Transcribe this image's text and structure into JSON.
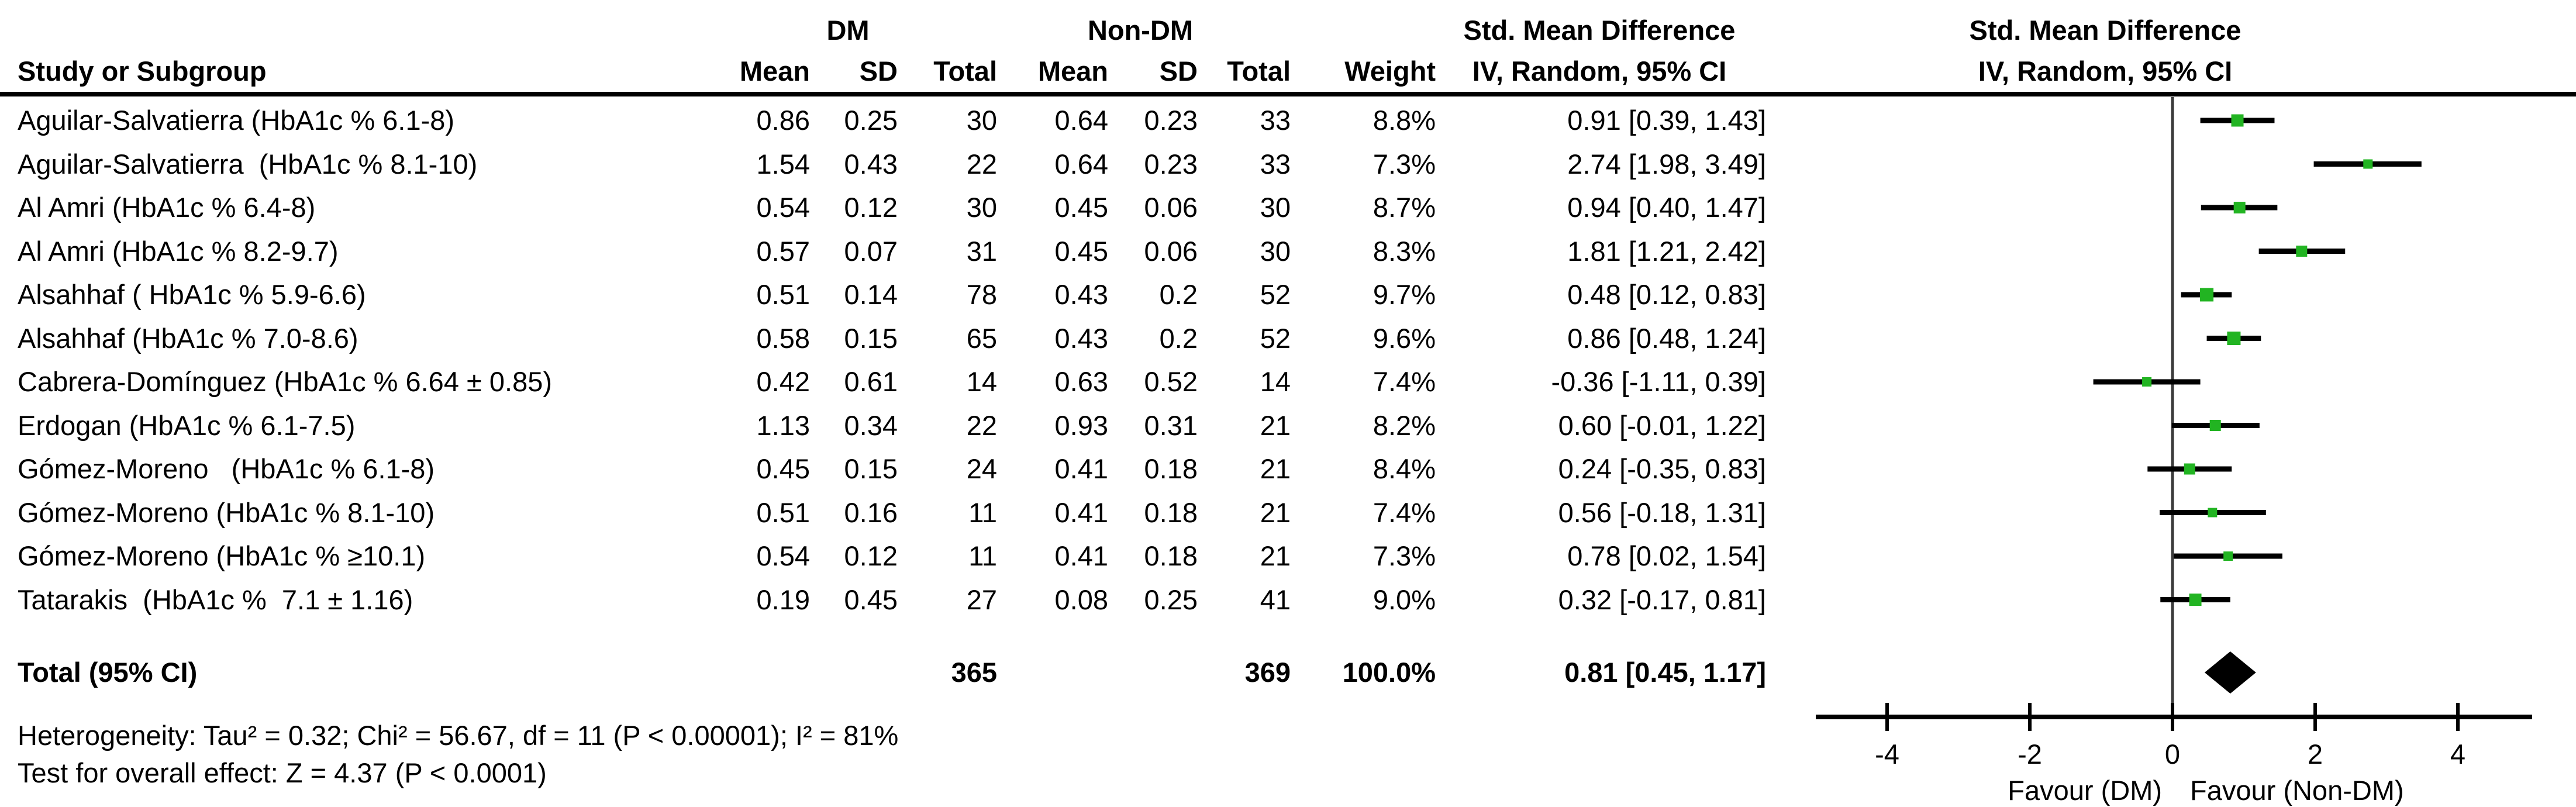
{
  "header": {
    "group1": "DM",
    "group2": "Non-DM",
    "effect_title": "Std. Mean Difference",
    "plot_title": "Std. Mean Difference",
    "columns": {
      "study": "Study or Subgroup",
      "mean1": "Mean",
      "sd1": "SD",
      "total1": "Total",
      "mean2": "Mean",
      "sd2": "SD",
      "total2": "Total",
      "weight": "Weight",
      "effect_ci": "IV, Random, 95% CI",
      "plot_ci": "IV, Random, 95% CI"
    }
  },
  "studies": [
    {
      "name": "Aguilar-Salvatierra (HbA1c % 6.1-8)",
      "mean1": "0.86",
      "sd1": "0.25",
      "total1": "30",
      "mean2": "0.64",
      "sd2": "0.23",
      "total2": "33",
      "weight": "8.8%",
      "ci_text": "0.91 [0.39, 1.43]"
    },
    {
      "name": "Aguilar-Salvatierra  (HbA1c % 8.1-10)",
      "mean1": "1.54",
      "sd1": "0.43",
      "total1": "22",
      "mean2": "0.64",
      "sd2": "0.23",
      "total2": "33",
      "weight": "7.3%",
      "ci_text": "2.74 [1.98, 3.49]"
    },
    {
      "name": "Al Amri (HbA1c % 6.4-8)",
      "mean1": "0.54",
      "sd1": "0.12",
      "total1": "30",
      "mean2": "0.45",
      "sd2": "0.06",
      "total2": "30",
      "weight": "8.7%",
      "ci_text": "0.94 [0.40, 1.47]"
    },
    {
      "name": "Al Amri (HbA1c % 8.2-9.7)",
      "mean1": "0.57",
      "sd1": "0.07",
      "total1": "31",
      "mean2": "0.45",
      "sd2": "0.06",
      "total2": "30",
      "weight": "8.3%",
      "ci_text": "1.81 [1.21, 2.42]"
    },
    {
      "name": "Alsahhaf ( HbA1c % 5.9-6.6)",
      "mean1": "0.51",
      "sd1": "0.14",
      "total1": "78",
      "mean2": "0.43",
      "sd2": "0.2",
      "total2": "52",
      "weight": "9.7%",
      "ci_text": "0.48 [0.12, 0.83]"
    },
    {
      "name": "Alsahhaf (HbA1c % 7.0-8.6)",
      "mean1": "0.58",
      "sd1": "0.15",
      "total1": "65",
      "mean2": "0.43",
      "sd2": "0.2",
      "total2": "52",
      "weight": "9.6%",
      "ci_text": "0.86 [0.48, 1.24]"
    },
    {
      "name": "Cabrera-Domínguez (HbA1c % 6.64 ± 0.85)",
      "mean1": "0.42",
      "sd1": "0.61",
      "total1": "14",
      "mean2": "0.63",
      "sd2": "0.52",
      "total2": "14",
      "weight": "7.4%",
      "ci_text": "-0.36 [-1.11, 0.39]"
    },
    {
      "name": "Erdogan (HbA1c % 6.1-7.5)",
      "mean1": "1.13",
      "sd1": "0.34",
      "total1": "22",
      "mean2": "0.93",
      "sd2": "0.31",
      "total2": "21",
      "weight": "8.2%",
      "ci_text": "0.60 [-0.01, 1.22]"
    },
    {
      "name": "Gómez-Moreno   (HbA1c % 6.1-8)",
      "mean1": "0.45",
      "sd1": "0.15",
      "total1": "24",
      "mean2": "0.41",
      "sd2": "0.18",
      "total2": "21",
      "weight": "8.4%",
      "ci_text": "0.24 [-0.35, 0.83]"
    },
    {
      "name": "Gómez-Moreno (HbA1c % 8.1-10)",
      "mean1": "0.51",
      "sd1": "0.16",
      "total1": "11",
      "mean2": "0.41",
      "sd2": "0.18",
      "total2": "21",
      "weight": "7.4%",
      "ci_text": "0.56 [-0.18, 1.31]"
    },
    {
      "name": "Gómez-Moreno (HbA1c % ≥10.1)",
      "mean1": "0.54",
      "sd1": "0.12",
      "total1": "11",
      "mean2": "0.41",
      "sd2": "0.18",
      "total2": "21",
      "weight": "7.3%",
      "ci_text": "0.78 [0.02, 1.54]"
    },
    {
      "name": "Tatarakis  (HbA1c %  7.1 ± 1.16)",
      "mean1": "0.19",
      "sd1": "0.45",
      "total1": "27",
      "mean2": "0.08",
      "sd2": "0.25",
      "total2": "41",
      "weight": "9.0%",
      "ci_text": "0.32 [-0.17, 0.81]"
    }
  ],
  "total_row": {
    "label": "Total (95% CI)",
    "total1": "365",
    "total2": "369",
    "weight": "100.0%",
    "ci_text": "0.81 [0.45, 1.17]"
  },
  "footer": {
    "heterogeneity": "Heterogeneity: Tau² = 0.32; Chi² = 56.67, df = 11 (P < 0.00001); I² = 81%",
    "overall_effect": "Test for overall effect: Z = 4.37 (P < 0.0001)"
  },
  "colors": {
    "marker_green": "#22B422",
    "line_black": "#000000",
    "zero_line_gray": "#3C3C3C",
    "text": "#000000",
    "background": "#FFFFFF"
  },
  "chart_data": {
    "type": "scatter",
    "subtype": "forest-plot",
    "effect_measure": "Std. Mean Difference, IV, Random, 95% CI",
    "points": [
      {
        "study": "Aguilar-Salvatierra (HbA1c % 6.1-8)",
        "est": 0.91,
        "lo": 0.39,
        "hi": 1.43,
        "weight_pct": 8.8
      },
      {
        "study": "Aguilar-Salvatierra (HbA1c % 8.1-10)",
        "est": 2.74,
        "lo": 1.98,
        "hi": 3.49,
        "weight_pct": 7.3
      },
      {
        "study": "Al Amri (HbA1c % 6.4-8)",
        "est": 0.94,
        "lo": 0.4,
        "hi": 1.47,
        "weight_pct": 8.7
      },
      {
        "study": "Al Amri (HbA1c % 8.2-9.7)",
        "est": 1.81,
        "lo": 1.21,
        "hi": 2.42,
        "weight_pct": 8.3
      },
      {
        "study": "Alsahhaf (HbA1c % 5.9-6.6)",
        "est": 0.48,
        "lo": 0.12,
        "hi": 0.83,
        "weight_pct": 9.7
      },
      {
        "study": "Alsahhaf (HbA1c % 7.0-8.6)",
        "est": 0.86,
        "lo": 0.48,
        "hi": 1.24,
        "weight_pct": 9.6
      },
      {
        "study": "Cabrera-Domínguez (HbA1c % 6.64 ± 0.85)",
        "est": -0.36,
        "lo": -1.11,
        "hi": 0.39,
        "weight_pct": 7.4
      },
      {
        "study": "Erdogan (HbA1c % 6.1-7.5)",
        "est": 0.6,
        "lo": -0.01,
        "hi": 1.22,
        "weight_pct": 8.2
      },
      {
        "study": "Gómez-Moreno (HbA1c % 6.1-8)",
        "est": 0.24,
        "lo": -0.35,
        "hi": 0.83,
        "weight_pct": 8.4
      },
      {
        "study": "Gómez-Moreno (HbA1c % 8.1-10)",
        "est": 0.56,
        "lo": -0.18,
        "hi": 1.31,
        "weight_pct": 7.4
      },
      {
        "study": "Gómez-Moreno (HbA1c % ≥10.1)",
        "est": 0.78,
        "lo": 0.02,
        "hi": 1.54,
        "weight_pct": 7.3
      },
      {
        "study": "Tatarakis (HbA1c % 7.1 ± 1.16)",
        "est": 0.32,
        "lo": -0.17,
        "hi": 0.81,
        "weight_pct": 9.0
      }
    ],
    "total": {
      "label": "Total (95% CI)",
      "est": 0.81,
      "lo": 0.45,
      "hi": 1.17,
      "weight_pct": 100.0
    },
    "xticks": [
      -4,
      -2,
      0,
      2,
      4
    ],
    "xlim": [
      -5,
      5
    ],
    "xlabel_left": "Favour (DM)",
    "xlabel_right": "Favour (Non-DM)",
    "grid": false,
    "legend": false,
    "marker_color": "#22B422"
  }
}
